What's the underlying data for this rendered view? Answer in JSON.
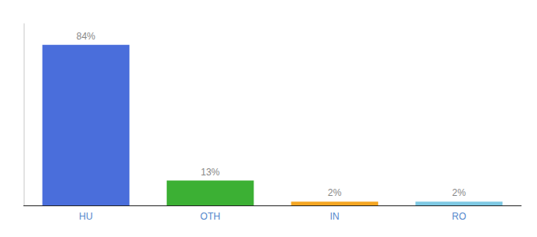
{
  "chart_data": {
    "type": "bar",
    "categories": [
      "HU",
      "OTH",
      "IN",
      "RO"
    ],
    "values": [
      84,
      13,
      2,
      2
    ],
    "value_labels": [
      "84%",
      "13%",
      "2%",
      "2%"
    ],
    "colors": [
      "#4A6EDB",
      "#3CB034",
      "#F5A623",
      "#7EC8E3"
    ],
    "ylim": [
      0,
      95
    ],
    "grid": false,
    "data_labels": true,
    "tick_labels": "x"
  }
}
